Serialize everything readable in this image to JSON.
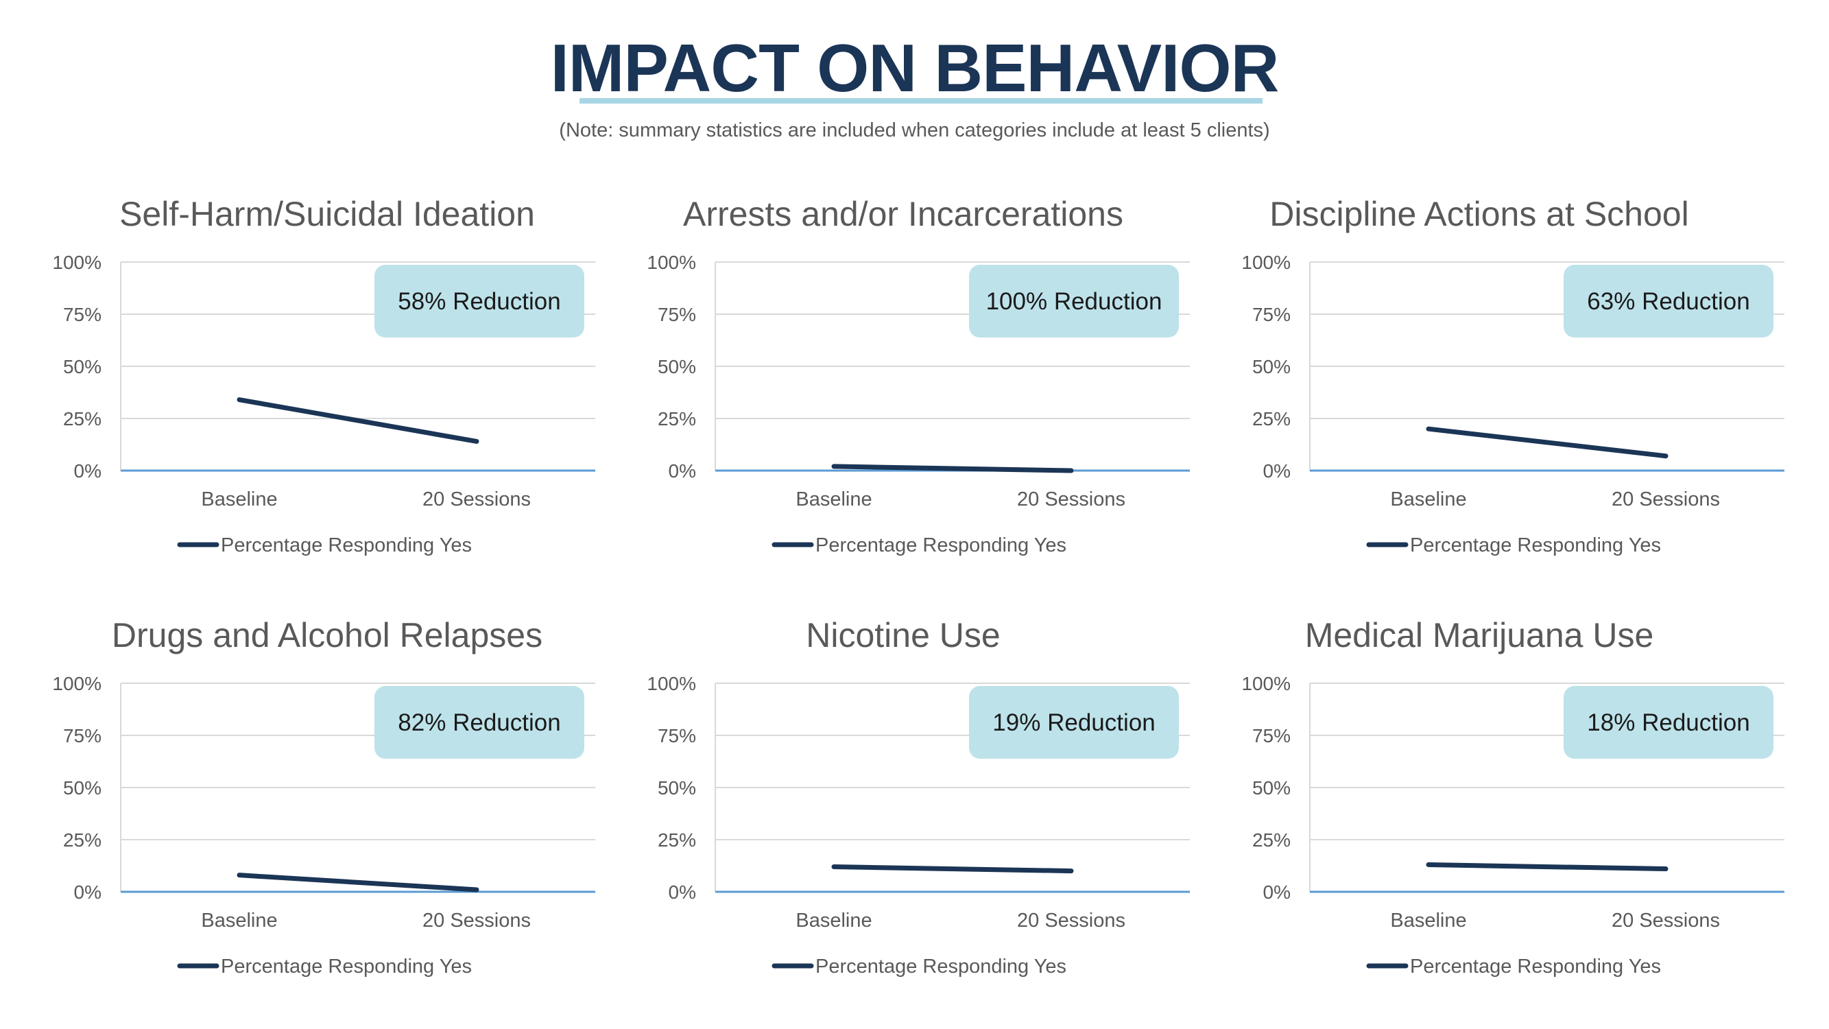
{
  "page": {
    "title": "IMPACT ON BEHAVIOR",
    "note": "(Note: summary statistics are included when categories include at least 5 clients)"
  },
  "colors": {
    "title": "#1b3556",
    "line": "#1b3556",
    "badge_fill": "#bde2ea",
    "axis": "#5b9bd5",
    "grid": "#d9d9d9",
    "text": "#595959"
  },
  "chart_data": [
    {
      "type": "line",
      "title": "Self-Harm/Suicidal Ideation",
      "categories": [
        "Baseline",
        "20 Sessions"
      ],
      "series": [
        {
          "name": "Percentage Responding Yes",
          "values": [
            34,
            14
          ]
        }
      ],
      "ylim": [
        0,
        100
      ],
      "yticks": [
        "100%",
        "75%",
        "50%",
        "25%",
        "0%"
      ],
      "annotation": "58% Reduction",
      "grid": true,
      "legend": "bottom"
    },
    {
      "type": "line",
      "title": "Arrests and/or Incarcerations",
      "categories": [
        "Baseline",
        "20 Sessions"
      ],
      "series": [
        {
          "name": "Percentage Responding Yes",
          "values": [
            2,
            0
          ]
        }
      ],
      "ylim": [
        0,
        100
      ],
      "yticks": [
        "100%",
        "75%",
        "50%",
        "25%",
        "0%"
      ],
      "annotation": "100% Reduction",
      "grid": true,
      "legend": "bottom"
    },
    {
      "type": "line",
      "title": "Discipline Actions at School",
      "categories": [
        "Baseline",
        "20 Sessions"
      ],
      "series": [
        {
          "name": "Percentage Responding Yes",
          "values": [
            20,
            7
          ]
        }
      ],
      "ylim": [
        0,
        100
      ],
      "yticks": [
        "100%",
        "75%",
        "50%",
        "25%",
        "0%"
      ],
      "annotation": "63% Reduction",
      "grid": true,
      "legend": "bottom"
    },
    {
      "type": "line",
      "title": "Drugs and Alcohol Relapses",
      "categories": [
        "Baseline",
        "20 Sessions"
      ],
      "series": [
        {
          "name": "Percentage Responding Yes",
          "values": [
            8,
            1
          ]
        }
      ],
      "ylim": [
        0,
        100
      ],
      "yticks": [
        "100%",
        "75%",
        "50%",
        "25%",
        "0%"
      ],
      "annotation": "82% Reduction",
      "grid": true,
      "legend": "bottom"
    },
    {
      "type": "line",
      "title": "Nicotine Use",
      "categories": [
        "Baseline",
        "20 Sessions"
      ],
      "series": [
        {
          "name": "Percentage Responding Yes",
          "values": [
            12,
            10
          ]
        }
      ],
      "ylim": [
        0,
        100
      ],
      "yticks": [
        "100%",
        "75%",
        "50%",
        "25%",
        "0%"
      ],
      "annotation": "19% Reduction",
      "grid": true,
      "legend": "bottom"
    },
    {
      "type": "line",
      "title": "Medical Marijuana Use",
      "categories": [
        "Baseline",
        "20 Sessions"
      ],
      "series": [
        {
          "name": "Percentage Responding Yes",
          "values": [
            13,
            11
          ]
        }
      ],
      "ylim": [
        0,
        100
      ],
      "yticks": [
        "100%",
        "75%",
        "50%",
        "25%",
        "0%"
      ],
      "annotation": "18% Reduction",
      "grid": true,
      "legend": "bottom"
    }
  ]
}
